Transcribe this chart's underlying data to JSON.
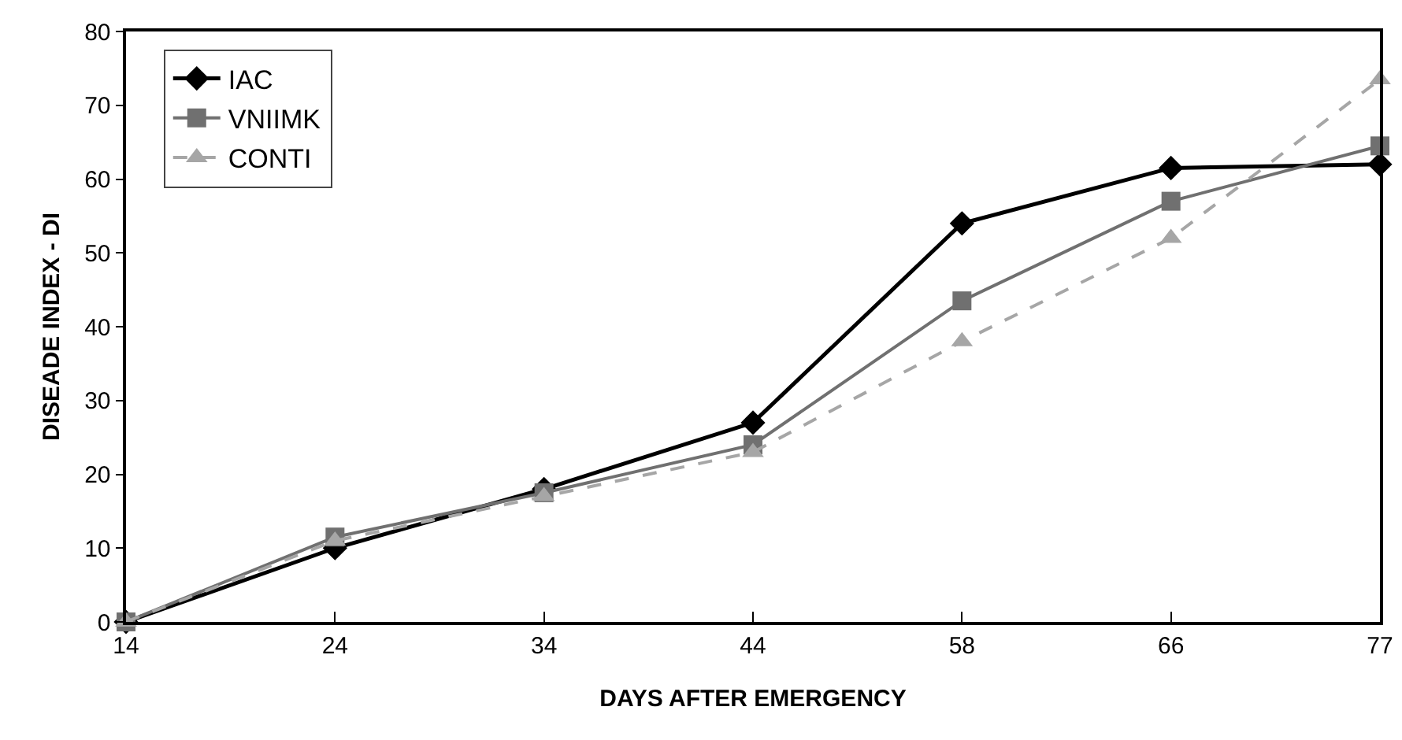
{
  "chart_data": {
    "type": "line",
    "xlabel": "DAYS AFTER EMERGENCY",
    "ylabel": "DISEADE INDEX - DI",
    "categories": [
      "14",
      "24",
      "34",
      "44",
      "58",
      "66",
      "77"
    ],
    "series": [
      {
        "name": "IAC",
        "color": "#000000",
        "marker": "diamond",
        "line_style": "solid",
        "values": [
          0,
          10,
          18,
          27,
          54,
          61.5,
          62
        ]
      },
      {
        "name": "VNIIMK",
        "color": "#707070",
        "marker": "square",
        "line_style": "solid",
        "values": [
          0,
          11.5,
          17.5,
          24,
          43.5,
          57,
          64.5
        ]
      },
      {
        "name": "CONTI",
        "color": "#a6a6a6",
        "marker": "triangle",
        "line_style": "dashed",
        "values": [
          0,
          11,
          17,
          23,
          38,
          52,
          73.5
        ]
      }
    ],
    "ylim": [
      0,
      80
    ],
    "yticks": [
      0,
      10,
      20,
      30,
      40,
      50,
      60,
      70,
      80
    ],
    "grid": false,
    "legend": "top left"
  }
}
